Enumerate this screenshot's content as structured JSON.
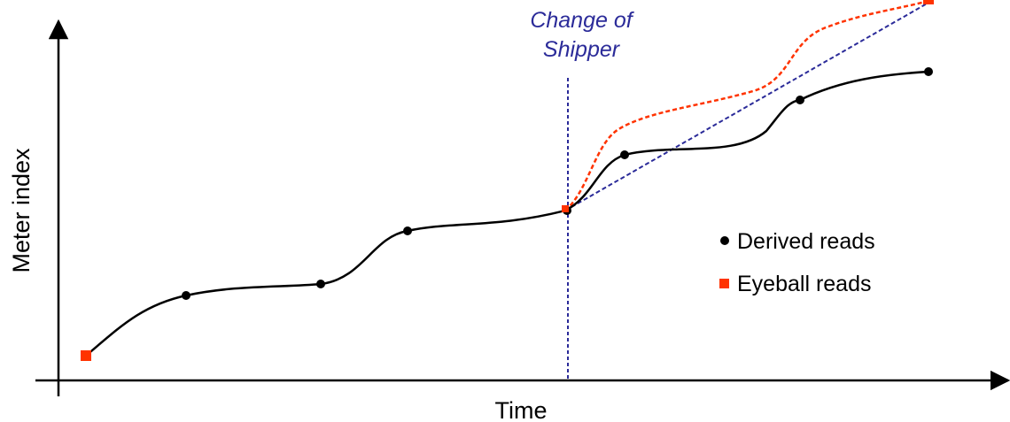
{
  "diagram": {
    "x_axis_label": "Time",
    "y_axis_label": "Meter index",
    "annotation": {
      "line1": "Change of",
      "line2": "Shipper"
    },
    "legend": {
      "derived": "Derived reads",
      "eyeball": "Eyeball reads"
    }
  },
  "colors": {
    "axis": "#000000",
    "derived_curve": "#000000",
    "derived_marker": "#000000",
    "eyeball_marker": "#ff3300",
    "eyeball_curve": "#ff3300",
    "change_line": "#2b2b99",
    "annotation_text": "#2b2b99"
  }
}
